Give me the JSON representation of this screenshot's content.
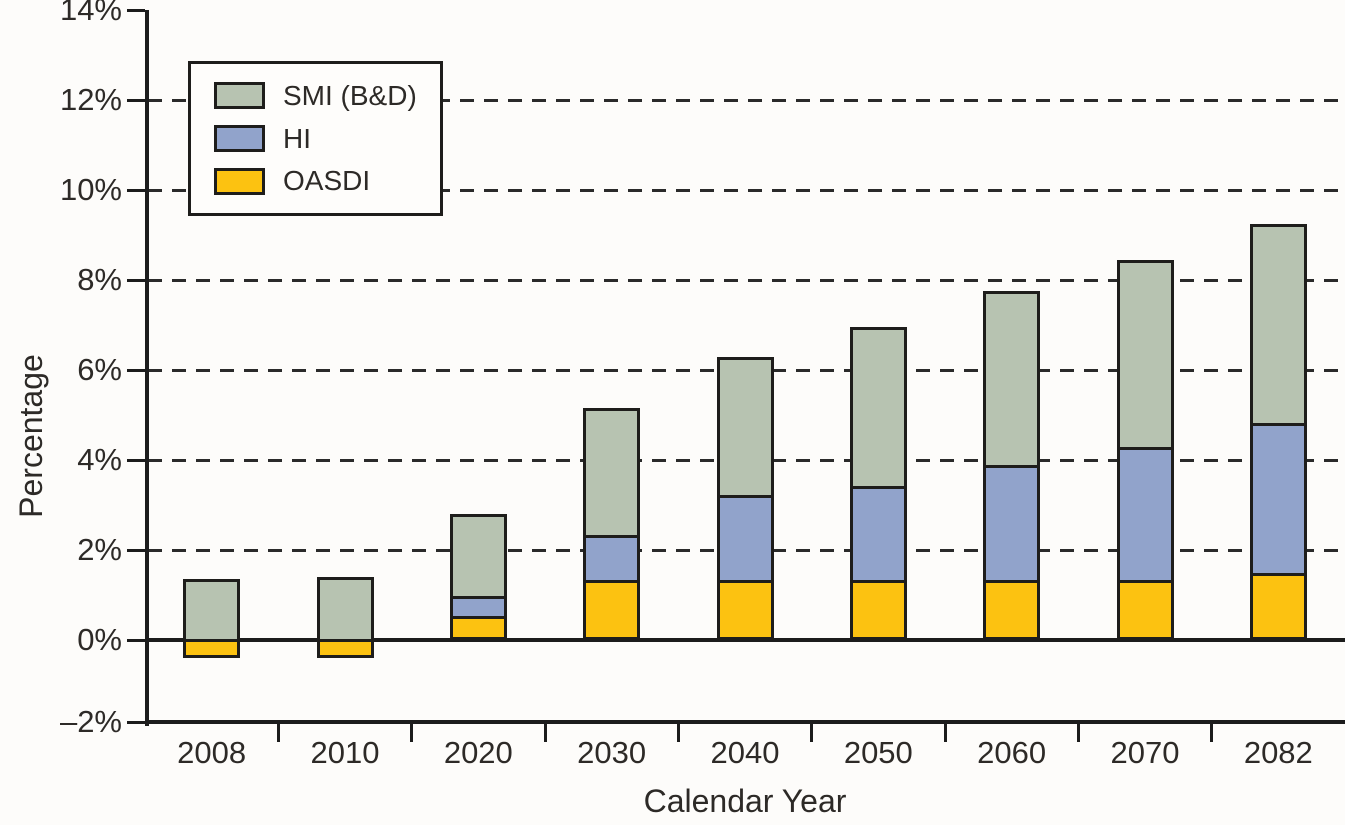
{
  "figure": {
    "background_color": "#fdfcfa",
    "line_color": "#1e1d1b",
    "text_color": "#2d2a27"
  },
  "legend": {
    "items": [
      {
        "label": "SMI (B&D)",
        "color": "#b7c3b1"
      },
      {
        "label": "HI",
        "color": "#91a3cb"
      },
      {
        "label": "OASDI",
        "color": "#fcc211"
      }
    ]
  },
  "chart_data": {
    "type": "bar",
    "stacked": true,
    "title": "",
    "xlabel": "Calendar Year",
    "ylabel": "Percentage",
    "categories": [
      "2008",
      "2010",
      "2020",
      "2030",
      "2040",
      "2050",
      "2060",
      "2070",
      "2082"
    ],
    "series": [
      {
        "name": "OASDI",
        "color": "#fcc211",
        "values": [
          -0.4,
          -0.4,
          0.5,
          1.3,
          1.3,
          1.3,
          1.3,
          1.3,
          1.45
        ]
      },
      {
        "name": "HI",
        "color": "#91a3cb",
        "values": [
          0,
          0,
          0.45,
          1.0,
          1.9,
          2.1,
          2.55,
          2.95,
          3.35
        ]
      },
      {
        "name": "SMI (B&D)",
        "color": "#b7c3b1",
        "values": [
          1.35,
          1.4,
          1.85,
          2.85,
          3.1,
          3.55,
          3.9,
          4.2,
          4.45
        ]
      }
    ],
    "stack_totals": [
      1.35,
      1.4,
      2.8,
      5.15,
      6.3,
      6.95,
      7.75,
      8.45,
      9.25
    ],
    "ylim": [
      -2,
      14
    ],
    "ytick_labels": [
      "14%",
      "12%",
      "10%",
      "8%",
      "6%",
      "4%",
      "2%",
      "0%",
      "–2%"
    ],
    "ytick_values": [
      14,
      12,
      10,
      8,
      6,
      4,
      2,
      0,
      -2
    ],
    "grid": "horizontal dashed lines at 2% steps from 2% to 12%; solid line at 0%",
    "legend_position": "upper-left"
  }
}
